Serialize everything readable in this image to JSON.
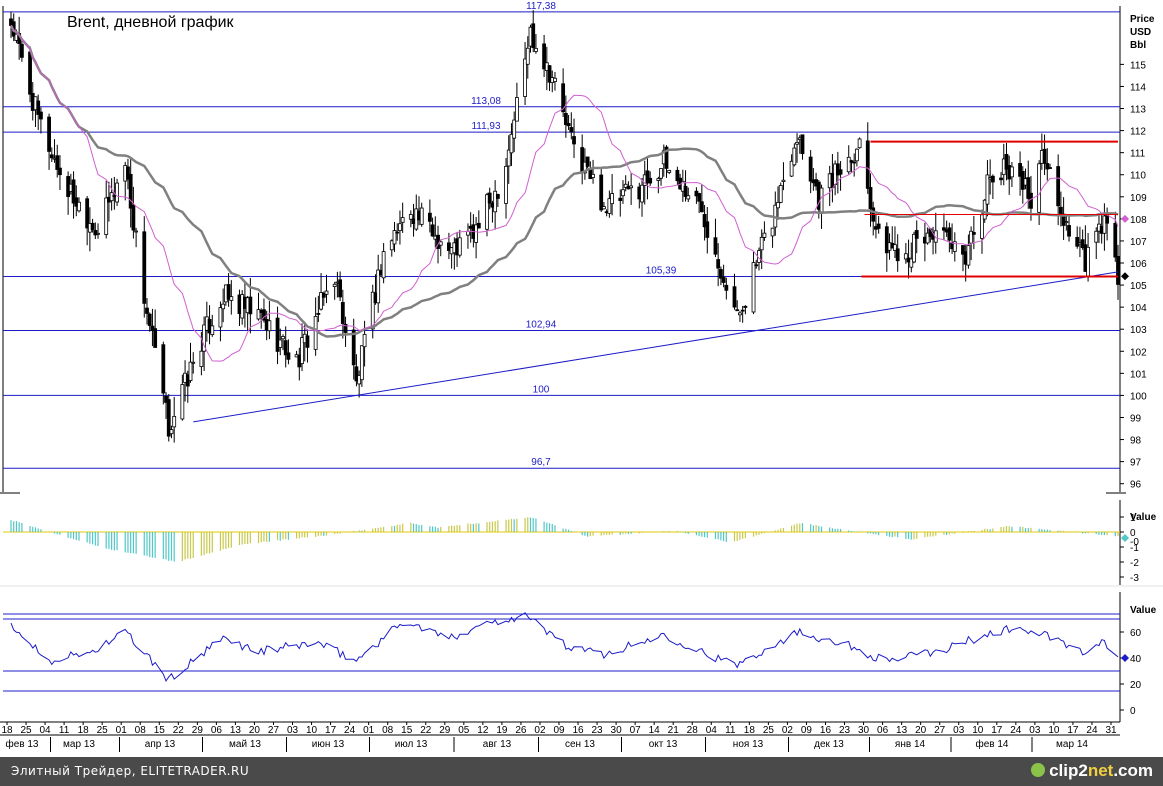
{
  "title": "Brent, дневной график",
  "price_axis_label": [
    "Price",
    "USD",
    "Bbl"
  ],
  "price_ticks": [
    96,
    97,
    98,
    99,
    100,
    101,
    102,
    103,
    104,
    105,
    106,
    107,
    108,
    109,
    110,
    111,
    112,
    113,
    114,
    115
  ],
  "level_lines": [
    {
      "value": 117.38,
      "label": "117,38"
    },
    {
      "value": 113.08,
      "label": "113,08"
    },
    {
      "value": 111.93,
      "label": "111,93"
    },
    {
      "value": 105.39,
      "label": "105,39"
    },
    {
      "value": 102.94,
      "label": "102,94"
    },
    {
      "value": 100,
      "label": "100"
    },
    {
      "value": 96.7,
      "label": "96,7"
    }
  ],
  "day_labels": [
    "18",
    "25",
    "04",
    "11",
    "18",
    "25",
    "01",
    "08",
    "15",
    "22",
    "29",
    "06",
    "13",
    "20",
    "27",
    "03",
    "10",
    "17",
    "24",
    "01",
    "08",
    "15",
    "22",
    "29",
    "05",
    "12",
    "19",
    "26",
    "02",
    "09",
    "16",
    "23",
    "30",
    "07",
    "14",
    "21",
    "28",
    "04",
    "11",
    "18",
    "25",
    "02",
    "09",
    "16",
    "23",
    "30",
    "06",
    "13",
    "20",
    "27",
    "03",
    "10",
    "17",
    "24",
    "03",
    "10",
    "17",
    "24",
    "31"
  ],
  "month_labels": [
    "фев 13",
    "мар 13",
    "апр 13",
    "май 13",
    "июн 13",
    "июл 13",
    "авг 13",
    "сен 13",
    "окт 13",
    "ноя 13",
    "дек 13",
    "янв 14",
    "фев 14",
    "мар 14"
  ],
  "macd_axis": {
    "label": "Value",
    "ticks": [
      "1",
      "0",
      "-1",
      "-2",
      "-3"
    ],
    "current": "-0"
  },
  "rsi_axis": {
    "label": "Value",
    "ticks": [
      "60",
      "40",
      "20",
      "0"
    ],
    "current": "40"
  },
  "footer": {
    "left": "Элитный Трейдер, ELITETRADER.RU",
    "brand_a": "clip2",
    "brand_b": "net",
    "brand_c": ".com"
  },
  "colors": {
    "level": "#1c1cc8",
    "candle": "#000000",
    "ma_fast": "#d060d0",
    "ma_slow": "#808080",
    "resistance": "#e00000",
    "macd_pos": "#c8c84a",
    "macd_neg": "#50c8c8",
    "rsi": "#1c1cc8"
  },
  "chart_data": [
    {
      "type": "candlestick",
      "title": "Brent, дневной график",
      "ylabel": "Price USD Bbl",
      "ylim": [
        96,
        117.5
      ],
      "x_start": "2013-02-18",
      "x_end": "2014-04-01",
      "close_waypoints": [
        {
          "date": "2013-02-18",
          "value": 116.9
        },
        {
          "date": "2013-02-28",
          "value": 112.5
        },
        {
          "date": "2013-03-10",
          "value": 109.5
        },
        {
          "date": "2013-03-22",
          "value": 107.5
        },
        {
          "date": "2013-04-01",
          "value": 110.5
        },
        {
          "date": "2013-04-08",
          "value": 104.5
        },
        {
          "date": "2013-04-17",
          "value": 98.5
        },
        {
          "date": "2013-04-29",
          "value": 102.5
        },
        {
          "date": "2013-05-07",
          "value": 104.5
        },
        {
          "date": "2013-05-21",
          "value": 103.5
        },
        {
          "date": "2013-06-03",
          "value": 101.5
        },
        {
          "date": "2013-06-17",
          "value": 105.5
        },
        {
          "date": "2013-06-25",
          "value": 100.5
        },
        {
          "date": "2013-07-05",
          "value": 106.5
        },
        {
          "date": "2013-07-15",
          "value": 108.5
        },
        {
          "date": "2013-07-30",
          "value": 106.5
        },
        {
          "date": "2013-08-08",
          "value": 107.5
        },
        {
          "date": "2013-08-18",
          "value": 110.0
        },
        {
          "date": "2013-08-28",
          "value": 116.5
        },
        {
          "date": "2013-09-05",
          "value": 114.5
        },
        {
          "date": "2013-09-12",
          "value": 111.5
        },
        {
          "date": "2013-09-25",
          "value": 108.5
        },
        {
          "date": "2013-10-07",
          "value": 109.5
        },
        {
          "date": "2013-10-16",
          "value": 110.5
        },
        {
          "date": "2013-10-30",
          "value": 108.5
        },
        {
          "date": "2013-11-07",
          "value": 105.5
        },
        {
          "date": "2013-11-12",
          "value": 103.5
        },
        {
          "date": "2013-11-25",
          "value": 108.0
        },
        {
          "date": "2013-12-04",
          "value": 112.0
        },
        {
          "date": "2013-12-12",
          "value": 109.0
        },
        {
          "date": "2013-12-27",
          "value": 111.5
        },
        {
          "date": "2014-01-03",
          "value": 107.0
        },
        {
          "date": "2014-01-13",
          "value": 106.5
        },
        {
          "date": "2014-01-24",
          "value": 107.5
        },
        {
          "date": "2014-02-03",
          "value": 106.0
        },
        {
          "date": "2014-02-12",
          "value": 109.5
        },
        {
          "date": "2014-02-21",
          "value": 110.5
        },
        {
          "date": "2014-02-28",
          "value": 109.0
        },
        {
          "date": "2014-03-05",
          "value": 111.0
        },
        {
          "date": "2014-03-10",
          "value": 108.5
        },
        {
          "date": "2014-03-20",
          "value": 106.0
        },
        {
          "date": "2014-03-27",
          "value": 108.0
        },
        {
          "date": "2014-04-01",
          "value": 105.3
        }
      ],
      "support_line": {
        "from": {
          "date": "2013-04-26",
          "value": 98.8
        },
        "to": {
          "date": "2014-04-01",
          "value": 105.6
        }
      },
      "resistance_lines": [
        {
          "from": "2013-12-31",
          "to": "2014-04-01",
          "value": 111.5
        },
        {
          "from": "2013-12-31",
          "to": "2014-04-01",
          "value": 108.2
        },
        {
          "from": "2013-12-31",
          "to": "2014-04-01",
          "value": 105.39
        }
      ],
      "current_price": 105.4,
      "ma_fast_current": 108.0
    },
    {
      "type": "bar",
      "title": "",
      "ylabel": "Value",
      "ylim": [
        -3,
        1.2
      ],
      "waypoints": [
        {
          "date": "2013-02-18",
          "value": 0.8
        },
        {
          "date": "2013-03-10",
          "value": -0.3
        },
        {
          "date": "2013-03-25",
          "value": -1.1
        },
        {
          "date": "2013-04-20",
          "value": -2.0
        },
        {
          "date": "2013-05-15",
          "value": -0.8
        },
        {
          "date": "2013-06-15",
          "value": -0.2
        },
        {
          "date": "2013-07-15",
          "value": 0.6
        },
        {
          "date": "2013-07-25",
          "value": 0.3
        },
        {
          "date": "2013-08-28",
          "value": 1.0
        },
        {
          "date": "2013-09-18",
          "value": -0.3
        },
        {
          "date": "2013-10-20",
          "value": 0.1
        },
        {
          "date": "2013-11-10",
          "value": -0.7
        },
        {
          "date": "2013-12-05",
          "value": 0.6
        },
        {
          "date": "2014-01-15",
          "value": -0.5
        },
        {
          "date": "2014-02-20",
          "value": 0.4
        },
        {
          "date": "2014-04-01",
          "value": -0.3
        }
      ]
    },
    {
      "type": "line",
      "title": "",
      "ylabel": "Value",
      "ylim": [
        0,
        80
      ],
      "level_lines": [
        30,
        70
      ],
      "waypoints": [
        {
          "date": "2013-02-18",
          "value": 65
        },
        {
          "date": "2013-03-04",
          "value": 38
        },
        {
          "date": "2013-03-20",
          "value": 45
        },
        {
          "date": "2013-04-01",
          "value": 60
        },
        {
          "date": "2013-04-17",
          "value": 23
        },
        {
          "date": "2013-05-07",
          "value": 55
        },
        {
          "date": "2013-05-20",
          "value": 45
        },
        {
          "date": "2013-06-10",
          "value": 52
        },
        {
          "date": "2013-06-25",
          "value": 38
        },
        {
          "date": "2013-07-12",
          "value": 68
        },
        {
          "date": "2013-07-30",
          "value": 55
        },
        {
          "date": "2013-08-08",
          "value": 65
        },
        {
          "date": "2013-08-26",
          "value": 73
        },
        {
          "date": "2013-09-12",
          "value": 47
        },
        {
          "date": "2013-09-25",
          "value": 43
        },
        {
          "date": "2013-10-16",
          "value": 58
        },
        {
          "date": "2013-11-11",
          "value": 34
        },
        {
          "date": "2013-12-04",
          "value": 60
        },
        {
          "date": "2013-12-20",
          "value": 52
        },
        {
          "date": "2014-01-05",
          "value": 38
        },
        {
          "date": "2014-01-25",
          "value": 45
        },
        {
          "date": "2014-02-10",
          "value": 57
        },
        {
          "date": "2014-02-21",
          "value": 63
        },
        {
          "date": "2014-03-05",
          "value": 58
        },
        {
          "date": "2014-03-20",
          "value": 43
        },
        {
          "date": "2014-03-27",
          "value": 52
        },
        {
          "date": "2014-04-01",
          "value": 40
        }
      ]
    }
  ]
}
